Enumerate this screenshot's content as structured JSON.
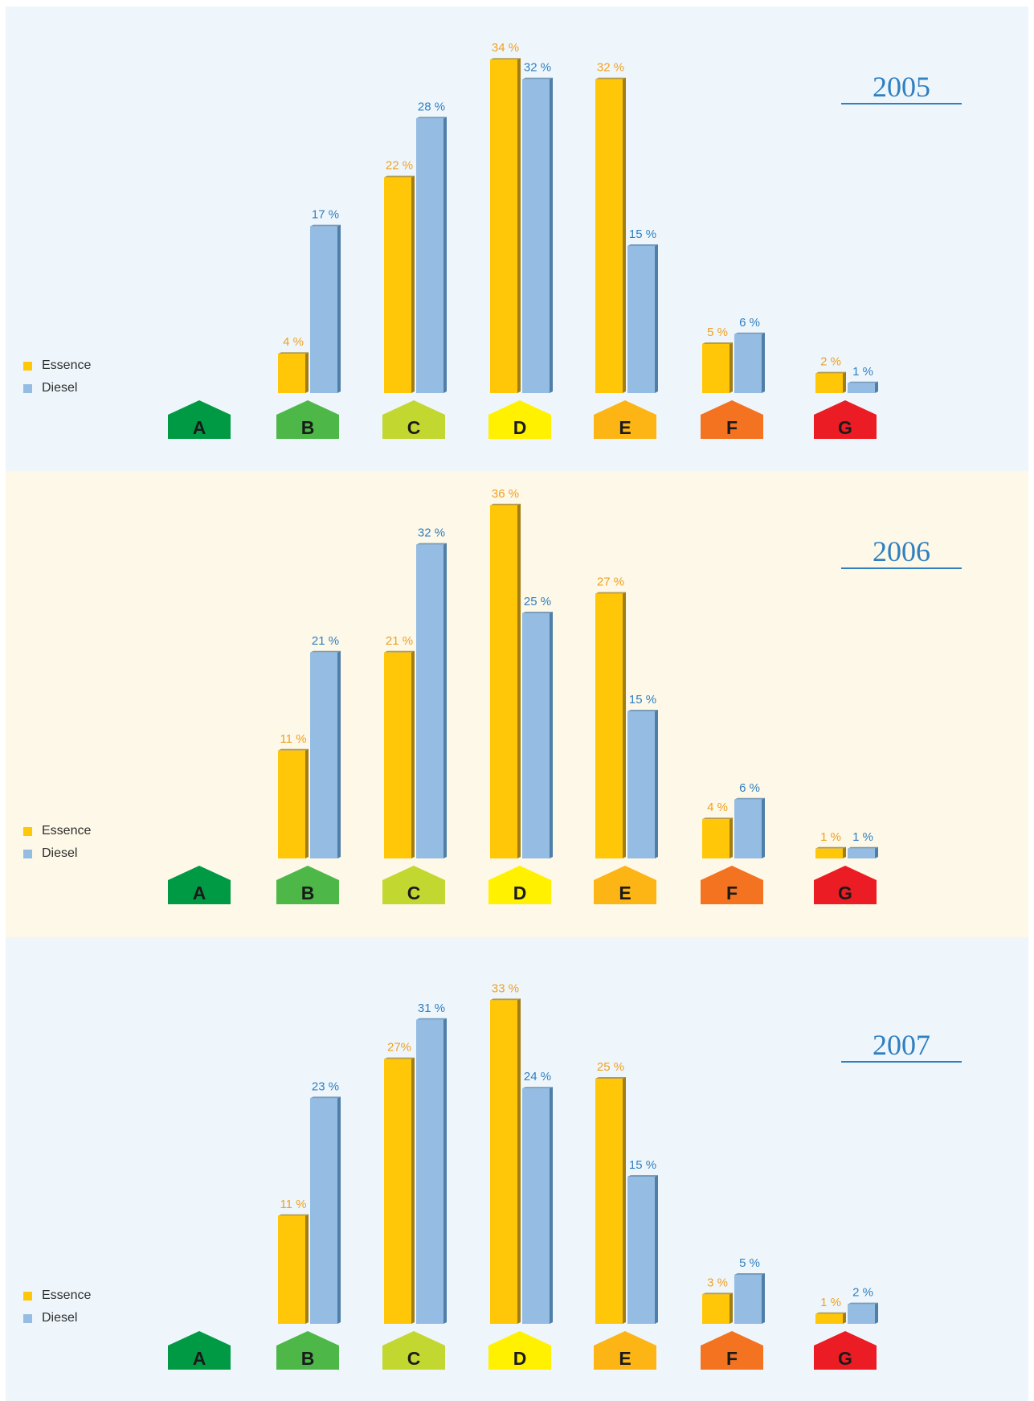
{
  "colors": {
    "essence": "#ffc708",
    "essence_side": "#a27d12",
    "essence_label": "#f0a020",
    "diesel": "#95bde3",
    "diesel_side": "#4f7ea8",
    "diesel_label": "#2f7fc1",
    "panel_2005": "#eef6fc",
    "panel_2006": "#fdf8e7",
    "panel_2007": "#eef6fc",
    "year_text": "#2f7fc1"
  },
  "legend": {
    "essence": "Essence",
    "diesel": "Diesel"
  },
  "categories": [
    {
      "letter": "A",
      "color": "#009a45"
    },
    {
      "letter": "B",
      "color": "#4db848"
    },
    {
      "letter": "C",
      "color": "#c2d830"
    },
    {
      "letter": "D",
      "color": "#fff100"
    },
    {
      "letter": "E",
      "color": "#fdb515"
    },
    {
      "letter": "F",
      "color": "#f47321"
    },
    {
      "letter": "G",
      "color": "#ec1c24"
    }
  ],
  "chart_data": [
    {
      "type": "bar",
      "title": "2005",
      "categories": [
        "A",
        "B",
        "C",
        "D",
        "E",
        "F",
        "G"
      ],
      "series": [
        {
          "name": "Essence",
          "values": [
            null,
            4,
            22,
            34,
            32,
            5,
            2
          ],
          "labels": [
            "",
            "4 %",
            "22 %",
            "34 %",
            "32 %",
            "5 %",
            "2 %"
          ]
        },
        {
          "name": "Diesel",
          "values": [
            null,
            17,
            28,
            32,
            15,
            6,
            1
          ],
          "labels": [
            "",
            "17 %",
            "28 %",
            "32 %",
            "15 %",
            "6 %",
            "1 %"
          ]
        }
      ],
      "ylim": [
        0,
        36
      ],
      "grid": false,
      "legend_position": "left"
    },
    {
      "type": "bar",
      "title": "2006",
      "categories": [
        "A",
        "B",
        "C",
        "D",
        "E",
        "F",
        "G"
      ],
      "series": [
        {
          "name": "Essence",
          "values": [
            null,
            11,
            21,
            36,
            27,
            4,
            1
          ],
          "labels": [
            "",
            "11 %",
            "21 %",
            "36 %",
            "27 %",
            "4 %",
            "1 %"
          ]
        },
        {
          "name": "Diesel",
          "values": [
            null,
            21,
            32,
            25,
            15,
            6,
            1
          ],
          "labels": [
            "",
            "21 %",
            "32 %",
            "25 %",
            "15 %",
            "6 %",
            "1 %"
          ]
        }
      ],
      "ylim": [
        0,
        36
      ],
      "grid": false,
      "legend_position": "left"
    },
    {
      "type": "bar",
      "title": "2007",
      "categories": [
        "A",
        "B",
        "C",
        "D",
        "E",
        "F",
        "G"
      ],
      "series": [
        {
          "name": "Essence",
          "values": [
            null,
            11,
            27,
            33,
            25,
            3,
            1
          ],
          "labels": [
            "",
            "11 %",
            "27%",
            "33 %",
            "25 %",
            "3 %",
            "1 %"
          ]
        },
        {
          "name": "Diesel",
          "values": [
            null,
            23,
            31,
            24,
            15,
            5,
            2
          ],
          "labels": [
            "",
            "23 %",
            "31 %",
            "24 %",
            "15 %",
            "5 %",
            "2 %"
          ]
        }
      ],
      "ylim": [
        0,
        36
      ],
      "grid": false,
      "legend_position": "left"
    }
  ]
}
